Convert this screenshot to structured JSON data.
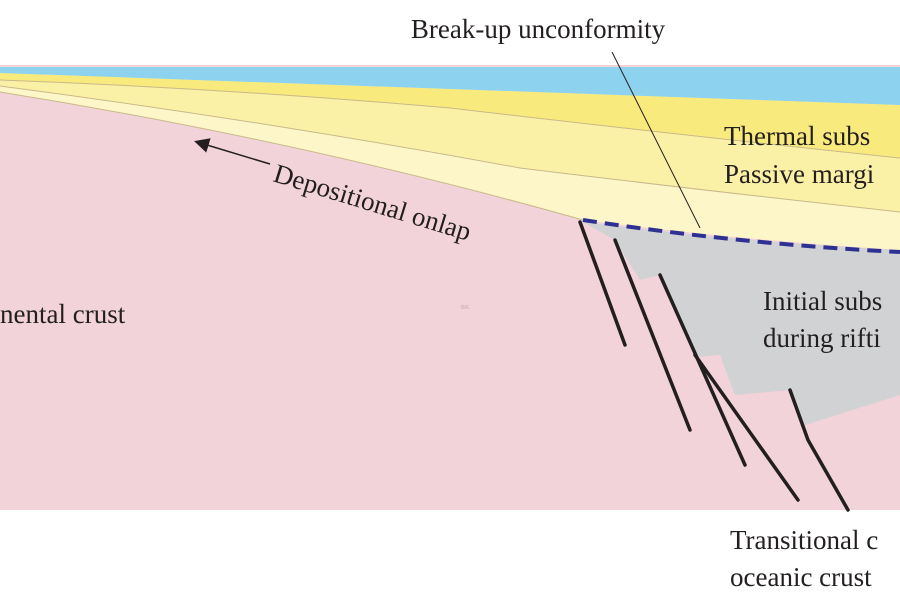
{
  "labels": {
    "breakup": "Break-up unconformity",
    "thermal_1": "Thermal subs",
    "thermal_2": "Passive margi",
    "onlap": "Depositional onlap",
    "continental": "nental crust",
    "initial_1": "Initial subs",
    "initial_2": "during rifti",
    "transitional_1": "Transitional c",
    "transitional_2": "oceanic crust",
    "mark": "BK"
  }
}
